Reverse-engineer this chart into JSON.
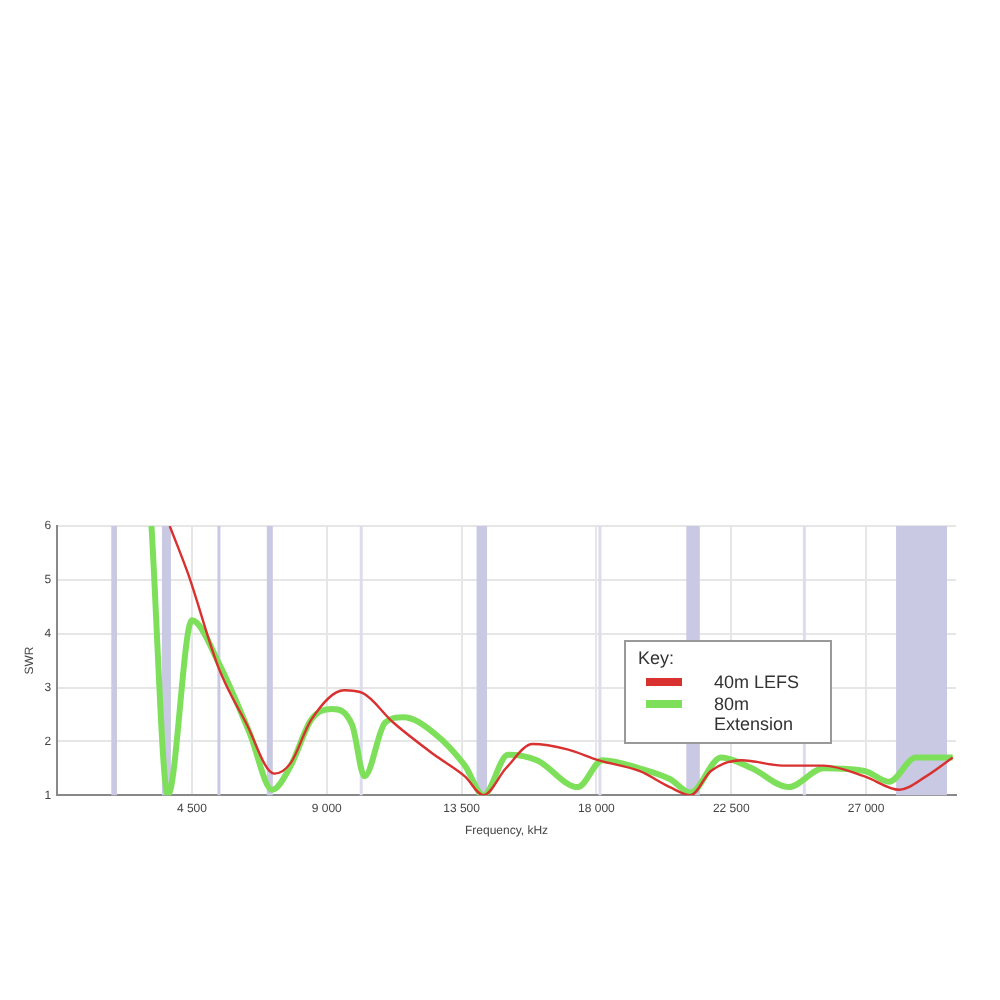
{
  "chart_data": {
    "type": "line",
    "xlabel": "Frequency, kHz",
    "ylabel": "SWR",
    "legend_title": "Key:",
    "legend": "right",
    "grid": true,
    "marker": "none",
    "line_style": "solid",
    "xlim": [
      0,
      30000
    ],
    "xticks": [
      {
        "value": 4500,
        "label": "4 500"
      },
      {
        "value": 9000,
        "label": "9 000"
      },
      {
        "value": 13500,
        "label": "13 500"
      },
      {
        "value": 18000,
        "label": "18 000"
      },
      {
        "value": 22500,
        "label": "22 500"
      },
      {
        "value": 27000,
        "label": "27 000"
      }
    ],
    "ylim": [
      1,
      6
    ],
    "yticks": [
      1,
      2,
      3,
      4,
      5,
      6
    ],
    "bands": [
      {
        "axis": "x",
        "from": 1810,
        "to": 2000,
        "color": "#c9c9e3"
      },
      {
        "axis": "x",
        "from": 3500,
        "to": 3800,
        "color": "#c9c9e3"
      },
      {
        "axis": "x",
        "from": 5351,
        "to": 5367,
        "color": "#c9c9e3"
      },
      {
        "axis": "x",
        "from": 7000,
        "to": 7200,
        "color": "#c9c9e3"
      },
      {
        "axis": "x",
        "from": 10100,
        "to": 10150,
        "color": "#dcdcee"
      },
      {
        "axis": "x",
        "from": 14000,
        "to": 14350,
        "color": "#c9c9e3"
      },
      {
        "axis": "x",
        "from": 18068,
        "to": 18168,
        "color": "#dcdcee"
      },
      {
        "axis": "x",
        "from": 21000,
        "to": 21450,
        "color": "#c9c9e3"
      },
      {
        "axis": "x",
        "from": 24890,
        "to": 24990,
        "color": "#dcdcee"
      },
      {
        "axis": "x",
        "from": 28000,
        "to": 29700,
        "color": "#c9c9e3"
      }
    ],
    "series": [
      {
        "name": "40m LEFS",
        "color": "#d93030",
        "x": [
          3760,
          4380,
          5400,
          6300,
          7250,
          7800,
          8480,
          9580,
          10190,
          11220,
          12590,
          13610,
          14230,
          14980,
          15870,
          17030,
          18060,
          19430,
          20450,
          21140,
          21820,
          22850,
          24210,
          25580,
          26950,
          28110,
          29000,
          29890
        ],
        "values": [
          6.0,
          5.1,
          3.35,
          2.35,
          1.4,
          1.6,
          2.4,
          2.95,
          2.9,
          2.35,
          1.75,
          1.35,
          1.0,
          1.5,
          1.95,
          1.85,
          1.65,
          1.45,
          1.15,
          1.0,
          1.45,
          1.65,
          1.55,
          1.55,
          1.35,
          1.1,
          1.35,
          1.7
        ]
      },
      {
        "name": "80m Extension",
        "color": "#7ee05a",
        "x": [
          3150,
          3700,
          4500,
          5400,
          6430,
          7180,
          7800,
          8480,
          9170,
          9850,
          10260,
          10950,
          11560,
          12590,
          13610,
          14230,
          15050,
          16010,
          17380,
          18200,
          19430,
          20450,
          21140,
          22160,
          23190,
          24420,
          25580,
          26950,
          27770,
          28660,
          29890
        ],
        "values": [
          6.0,
          1.0,
          4.25,
          3.45,
          2.15,
          1.1,
          1.55,
          2.4,
          2.6,
          2.3,
          1.35,
          2.35,
          2.45,
          2.15,
          1.55,
          1.0,
          1.75,
          1.65,
          1.15,
          1.65,
          1.5,
          1.3,
          1.05,
          1.7,
          1.5,
          1.15,
          1.5,
          1.45,
          1.25,
          1.7,
          1.7
        ]
      }
    ]
  }
}
